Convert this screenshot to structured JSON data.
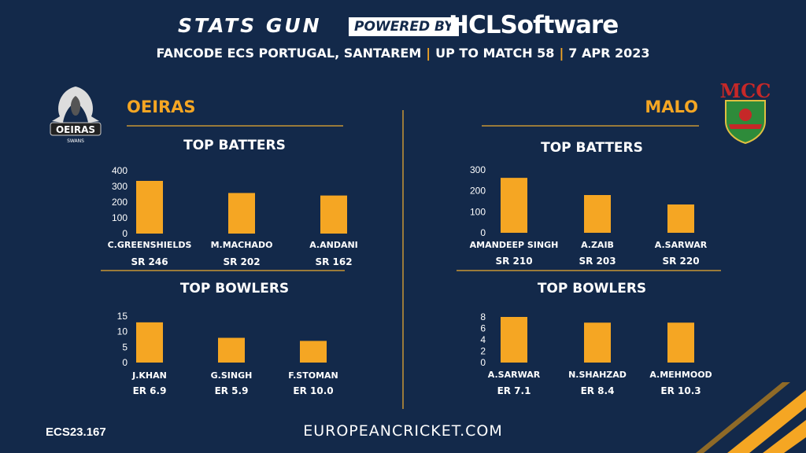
{
  "header": {
    "brand": "STATS GUN",
    "powered_by": "POWERED BY",
    "sponsor": "HCLSoftware",
    "event": "FANCODE ECS PORTUGAL, SANTAREM",
    "match": "UP TO MATCH  58",
    "date": "7 APR 2023"
  },
  "teams": {
    "left": {
      "name": "OEIRAS",
      "logo_text": "OEIRAS",
      "logo_sub": "SWANS"
    },
    "right": {
      "name": "MALO",
      "logo_text": "MCC"
    }
  },
  "sections": {
    "batters_title": "TOP BATTERS",
    "bowlers_title": "TOP BOWLERS"
  },
  "footer": {
    "code": "ECS23.167",
    "url": "EUROPEANCRICKET.COM"
  },
  "colors": {
    "background": "#13294a",
    "bar": "#f5a623",
    "accent": "#f5a623"
  },
  "chart_data": [
    {
      "id": "left-batters",
      "type": "bar",
      "categories": [
        "C.GREENSHIELDS",
        "M.MACHADO",
        "A.ANDANI"
      ],
      "values": [
        335,
        258,
        242
      ],
      "sublabels": [
        "SR 246",
        "SR 202",
        "SR 162"
      ],
      "ticks": [
        0,
        100,
        200,
        300,
        400
      ],
      "ylim": [
        0,
        400
      ]
    },
    {
      "id": "left-bowlers",
      "type": "bar",
      "categories": [
        "J.KHAN",
        "G.SINGH",
        "F.STOMAN"
      ],
      "values": [
        13,
        8,
        7
      ],
      "sublabels": [
        "ER 6.9",
        "ER 5.9",
        "ER 10.0"
      ],
      "ticks": [
        0,
        5,
        10,
        15
      ],
      "ylim": [
        0,
        15
      ]
    },
    {
      "id": "right-batters",
      "type": "bar",
      "categories": [
        "AMANDEEP SINGH",
        "A.ZAIB",
        "A.SARWAR"
      ],
      "values": [
        262,
        180,
        135
      ],
      "sublabels": [
        "SR 210",
        "SR 203",
        "SR 220"
      ],
      "ticks": [
        0,
        100,
        200,
        300
      ],
      "ylim": [
        0,
        300
      ]
    },
    {
      "id": "right-bowlers",
      "type": "bar",
      "categories": [
        "A.SARWAR",
        "N.SHAHZAD",
        "A.MEHMOOD"
      ],
      "values": [
        8,
        7,
        7
      ],
      "sublabels": [
        "ER 7.1",
        "ER 8.4",
        "ER 10.3"
      ],
      "ticks": [
        0,
        2,
        4,
        6,
        8
      ],
      "ylim": [
        0,
        8
      ]
    }
  ]
}
